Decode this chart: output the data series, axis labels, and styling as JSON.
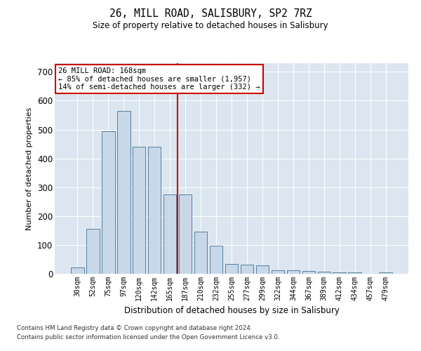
{
  "title": "26, MILL ROAD, SALISBURY, SP2 7RZ",
  "subtitle": "Size of property relative to detached houses in Salisbury",
  "xlabel": "Distribution of detached houses by size in Salisbury",
  "ylabel": "Number of detached properties",
  "categories": [
    "30sqm",
    "52sqm",
    "75sqm",
    "97sqm",
    "120sqm",
    "142sqm",
    "165sqm",
    "187sqm",
    "210sqm",
    "232sqm",
    "255sqm",
    "277sqm",
    "299sqm",
    "322sqm",
    "344sqm",
    "367sqm",
    "389sqm",
    "412sqm",
    "434sqm",
    "457sqm",
    "479sqm"
  ],
  "values": [
    22,
    155,
    493,
    565,
    440,
    440,
    275,
    275,
    145,
    98,
    35,
    32,
    30,
    13,
    12,
    10,
    8,
    5,
    4,
    1,
    5
  ],
  "bar_color": "#c8d8e8",
  "bar_edge_color": "#5580a0",
  "vline_index": 6,
  "vline_color": "#cc0000",
  "annotation_line1": "26 MILL ROAD: 168sqm",
  "annotation_line2": "← 85% of detached houses are smaller (1,957)",
  "annotation_line3": "14% of semi-detached houses are larger (332) →",
  "annotation_box_color": "#ffffff",
  "annotation_box_edge": "#cc0000",
  "ylim": [
    0,
    730
  ],
  "yticks": [
    0,
    100,
    200,
    300,
    400,
    500,
    600,
    700
  ],
  "bg_color": "#dce6f0",
  "footer1": "Contains HM Land Registry data © Crown copyright and database right 2024.",
  "footer2": "Contains public sector information licensed under the Open Government Licence v3.0."
}
